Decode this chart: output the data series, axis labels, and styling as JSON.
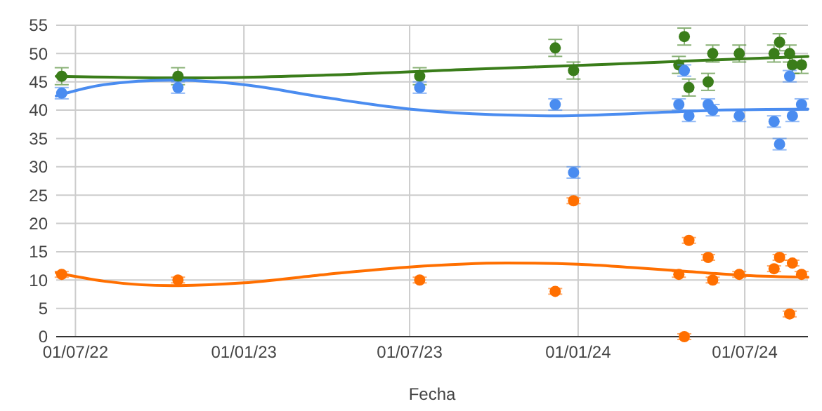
{
  "chart_data": {
    "type": "scatter",
    "xlabel": "Fecha",
    "xlim": [
      "2022-06-10",
      "2024-09-08"
    ],
    "xticks": [
      {
        "value": "2022-07-01",
        "label": "01/07/22"
      },
      {
        "value": "2023-01-01",
        "label": "01/01/23"
      },
      {
        "value": "2023-07-01",
        "label": "01/07/23"
      },
      {
        "value": "2024-01-01",
        "label": "01/01/24"
      },
      {
        "value": "2024-07-01",
        "label": "01/07/24"
      }
    ],
    "ylim": [
      0,
      55
    ],
    "yticks": [
      0,
      5,
      10,
      15,
      20,
      25,
      30,
      35,
      40,
      45,
      50,
      55
    ],
    "grid": true,
    "marker": "circle",
    "x": [
      "2022-06-16",
      "2022-10-21",
      "2023-07-12",
      "2023-12-07",
      "2023-12-27",
      "2024-04-20",
      "2024-04-26",
      "2024-05-01",
      "2024-05-22",
      "2024-05-27",
      "2024-06-25",
      "2024-08-02",
      "2024-08-08",
      "2024-08-19",
      "2024-08-22",
      "2024-09-01"
    ],
    "series": [
      {
        "type": "line",
        "marker": "none",
        "color": "#3a7d1a",
        "x": [
          "2022-06-10",
          "2022-11-01",
          "2023-04-01",
          "2023-09-01",
          "2024-02-01",
          "2024-06-01",
          "2024-09-08"
        ],
        "values": [
          46,
          45.7,
          46.2,
          47.2,
          48.1,
          48.9,
          49.5
        ]
      },
      {
        "type": "line",
        "marker": "none",
        "color": "#4a8cf0",
        "x": [
          "2022-06-10",
          "2022-08-01",
          "2022-10-15",
          "2023-01-01",
          "2023-04-01",
          "2023-07-01",
          "2023-10-01",
          "2023-12-15",
          "2024-03-01",
          "2024-06-01",
          "2024-09-08"
        ],
        "values": [
          42.5,
          44.5,
          45.3,
          44.5,
          42.2,
          40.2,
          39.2,
          39,
          39.4,
          40,
          40.2
        ]
      },
      {
        "type": "line",
        "marker": "none",
        "color": "#ff6f00",
        "x": [
          "2022-06-10",
          "2022-08-01",
          "2022-10-15",
          "2023-01-01",
          "2023-04-01",
          "2023-07-01",
          "2023-10-15",
          "2024-01-01",
          "2024-03-01",
          "2024-05-01",
          "2024-07-01",
          "2024-09-08"
        ],
        "values": [
          11.3,
          9.8,
          9,
          9.5,
          11,
          12.3,
          13,
          12.8,
          12.2,
          11.5,
          10.8,
          10.5
        ]
      },
      {
        "color": "#3a7d1a",
        "values": [
          46,
          46,
          46,
          51,
          47,
          48,
          53,
          44,
          45,
          50,
          50,
          50,
          52,
          50,
          48,
          48
        ],
        "errors": [
          1.5,
          1.5,
          1.5,
          1.5,
          1.5,
          1.5,
          1.5,
          1.5,
          1.5,
          1.5,
          1.5,
          1.5,
          1.5,
          1.5,
          1.5,
          1.5
        ]
      },
      {
        "color": "#4a8cf0",
        "values": [
          43,
          44,
          44,
          41,
          29,
          41,
          47,
          39,
          41,
          40,
          39,
          38,
          34,
          46,
          39,
          41
        ],
        "errors": [
          1,
          1,
          1,
          1,
          1,
          1,
          1,
          1,
          1,
          1,
          1,
          1,
          1,
          1,
          1,
          1
        ]
      },
      {
        "color": "#ff6f00",
        "values": [
          11,
          10,
          10,
          8,
          24,
          11,
          0,
          17,
          14,
          10,
          11,
          12,
          14,
          4,
          13,
          11
        ],
        "errors": [
          0.5,
          0.5,
          0.5,
          0.5,
          0.5,
          0.5,
          0.5,
          0.5,
          0.5,
          0.5,
          0.5,
          0.5,
          0.5,
          0.5,
          0.5,
          0.5
        ]
      }
    ]
  }
}
